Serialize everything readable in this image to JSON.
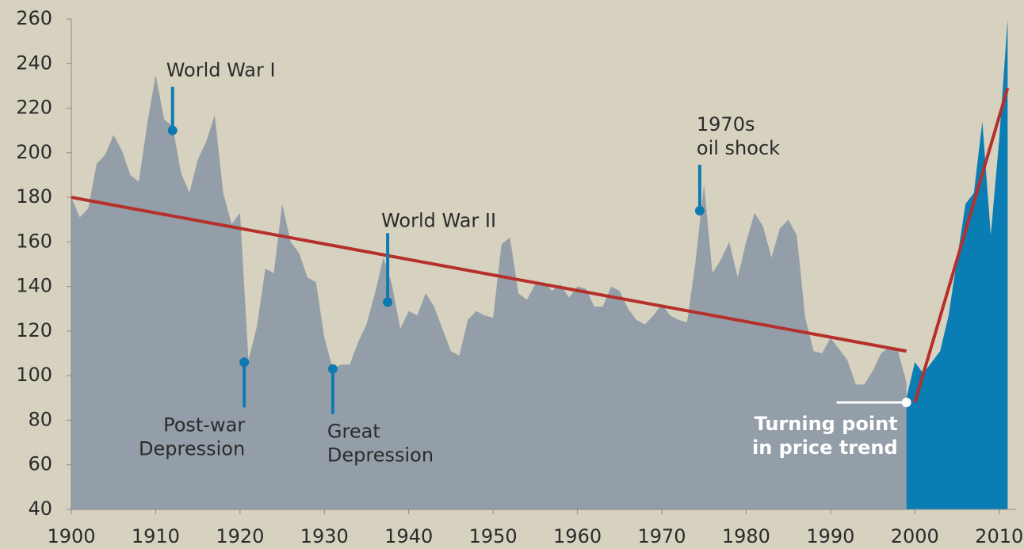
{
  "chart_data": {
    "type": "area",
    "x": [
      1900,
      1901,
      1902,
      1903,
      1904,
      1905,
      1906,
      1907,
      1908,
      1909,
      1910,
      1911,
      1912,
      1913,
      1914,
      1915,
      1916,
      1917,
      1918,
      1919,
      1920,
      1921,
      1922,
      1923,
      1924,
      1925,
      1926,
      1927,
      1928,
      1929,
      1930,
      1931,
      1932,
      1933,
      1934,
      1935,
      1936,
      1937,
      1938,
      1939,
      1940,
      1941,
      1942,
      1943,
      1944,
      1945,
      1946,
      1947,
      1948,
      1949,
      1950,
      1951,
      1952,
      1953,
      1954,
      1955,
      1956,
      1957,
      1958,
      1959,
      1960,
      1961,
      1962,
      1963,
      1964,
      1965,
      1966,
      1967,
      1968,
      1969,
      1970,
      1971,
      1972,
      1973,
      1974,
      1975,
      1976,
      1977,
      1978,
      1979,
      1980,
      1981,
      1982,
      1983,
      1984,
      1985,
      1986,
      1987,
      1988,
      1989,
      1990,
      1991,
      1992,
      1993,
      1994,
      1995,
      1996,
      1997,
      1998,
      1999,
      2000,
      2001,
      2002,
      2003,
      2004,
      2005,
      2006,
      2007,
      2008,
      2009,
      2010,
      2011
    ],
    "series": [
      {
        "color": "#949ea8",
        "values": [
          180,
          171,
          175,
          195,
          199,
          208,
          201,
          190,
          187,
          213,
          235,
          215,
          212,
          191,
          182,
          197,
          205,
          217,
          182,
          168,
          173,
          107,
          122,
          148,
          146,
          177,
          160,
          155,
          144,
          142,
          117,
          103,
          105,
          105,
          115,
          123,
          137,
          153,
          141,
          121,
          129,
          127,
          137,
          131,
          121,
          111,
          109,
          125,
          129,
          127,
          126,
          159,
          162,
          137,
          134,
          141,
          142,
          138,
          141,
          135,
          140,
          139,
          131,
          131,
          140,
          138,
          130,
          125,
          123,
          127,
          132,
          127,
          125,
          124,
          151,
          186,
          146,
          152,
          160,
          144,
          160,
          173,
          167,
          153,
          166,
          170,
          163,
          126,
          111,
          110,
          117,
          112,
          107,
          96,
          96,
          102,
          110,
          113,
          111,
          97,
          null,
          null,
          null,
          null,
          null,
          null,
          null,
          null,
          null,
          null,
          null,
          null
        ]
      },
      {
        "color": "#0a7db5",
        "values": [
          null,
          null,
          null,
          null,
          null,
          null,
          null,
          null,
          null,
          null,
          null,
          null,
          null,
          null,
          null,
          null,
          null,
          null,
          null,
          null,
          null,
          null,
          null,
          null,
          null,
          null,
          null,
          null,
          null,
          null,
          null,
          null,
          null,
          null,
          null,
          null,
          null,
          null,
          null,
          null,
          null,
          null,
          null,
          null,
          null,
          null,
          null,
          null,
          null,
          null,
          null,
          null,
          null,
          null,
          null,
          null,
          null,
          null,
          null,
          null,
          null,
          null,
          null,
          null,
          null,
          null,
          null,
          null,
          null,
          null,
          null,
          null,
          null,
          null,
          null,
          null,
          null,
          null,
          null,
          null,
          null,
          null,
          null,
          null,
          null,
          null,
          null,
          null,
          null,
          null,
          null,
          null,
          null,
          null,
          null,
          null,
          null,
          null,
          null,
          90,
          106,
          101,
          106,
          111,
          127,
          152,
          177,
          182,
          214,
          163,
          206,
          260
        ]
      }
    ],
    "trend_lines": [
      {
        "color": "#b5302b",
        "x": [
          1900,
          1999
        ],
        "values": [
          180,
          111
        ]
      },
      {
        "color": "#b5302b",
        "x": [
          2000,
          2011
        ],
        "values": [
          88,
          229
        ]
      }
    ],
    "annotations": [
      {
        "text": [
          "World War I"
        ],
        "x": 1912,
        "y": 210
      },
      {
        "text": [
          "Post-war",
          "Depression"
        ],
        "x": 1920.5,
        "y": 106
      },
      {
        "text": [
          "Great",
          "Depression"
        ],
        "x": 1931,
        "y": 103
      },
      {
        "text": [
          "World War II"
        ],
        "x": 1937.5,
        "y": 133
      },
      {
        "text": [
          "1970s",
          "oil shock"
        ],
        "x": 1974.5,
        "y": 174
      },
      {
        "text": [
          "Turning point",
          "in price trend"
        ],
        "x": 1999,
        "y": 88
      }
    ],
    "xlim": [
      1900,
      2012
    ],
    "ylim": [
      40,
      260
    ],
    "xticks": [
      1900,
      1910,
      1920,
      1930,
      1940,
      1950,
      1960,
      1970,
      1980,
      1990,
      2000,
      2010
    ],
    "yticks": [
      40,
      60,
      80,
      100,
      120,
      140,
      160,
      180,
      200,
      220,
      240,
      260
    ]
  }
}
